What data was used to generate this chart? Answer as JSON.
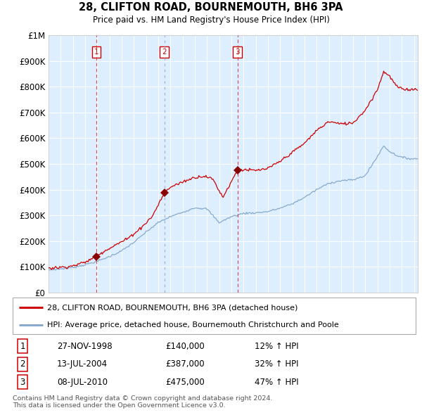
{
  "title": "28, CLIFTON ROAD, BOURNEMOUTH, BH6 3PA",
  "subtitle": "Price paid vs. HM Land Registry's House Price Index (HPI)",
  "legend_line1": "28, CLIFTON ROAD, BOURNEMOUTH, BH6 3PA (detached house)",
  "legend_line2": "HPI: Average price, detached house, Bournemouth Christchurch and Poole",
  "footer1": "Contains HM Land Registry data © Crown copyright and database right 2024.",
  "footer2": "This data is licensed under the Open Government Licence v3.0.",
  "transactions": [
    {
      "num": 1,
      "date": "27-NOV-1998",
      "price": 140000,
      "hpi_pct": "12% ↑ HPI"
    },
    {
      "num": 2,
      "date": "13-JUL-2004",
      "price": 387000,
      "hpi_pct": "32% ↑ HPI"
    },
    {
      "num": 3,
      "date": "08-JUL-2010",
      "price": 475000,
      "hpi_pct": "47% ↑ HPI"
    }
  ],
  "red_line_color": "#cc0000",
  "blue_line_color": "#88aacc",
  "plot_bg": "#ddeeff",
  "grid_color": "#ffffff",
  "marker_color": "#880000",
  "ylim": [
    0,
    1000000
  ],
  "yticks": [
    0,
    100000,
    200000,
    300000,
    400000,
    500000,
    600000,
    700000,
    800000,
    900000,
    1000000
  ],
  "ytick_labels": [
    "£0",
    "£100K",
    "£200K",
    "£300K",
    "£400K",
    "£500K",
    "£600K",
    "£700K",
    "£800K",
    "£900K",
    "£1M"
  ],
  "xstart_year": 1995,
  "xend_year": 2025,
  "sale1_year_f": 1998.917,
  "sale2_year_f": 2004.5,
  "sale3_year_f": 2010.5,
  "sale1_price": 140000,
  "sale2_price": 387000,
  "sale3_price": 475000,
  "hpi_anchors_y": [
    1995.0,
    1996.0,
    1997.0,
    1998.0,
    1999.0,
    2000.0,
    2001.0,
    2002.0,
    2003.0,
    2004.0,
    2005.0,
    2006.0,
    2007.0,
    2008.0,
    2009.0,
    2010.0,
    2011.0,
    2012.0,
    2013.0,
    2014.0,
    2015.0,
    2016.0,
    2017.0,
    2018.0,
    2019.0,
    2020.0,
    2021.0,
    2022.0,
    2022.5,
    2023.0,
    2023.5,
    2024.0,
    2024.8
  ],
  "hpi_anchors_v": [
    88000,
    92000,
    98000,
    108000,
    122000,
    140000,
    162000,
    195000,
    235000,
    272000,
    295000,
    312000,
    330000,
    325000,
    272000,
    295000,
    308000,
    310000,
    315000,
    328000,
    345000,
    370000,
    400000,
    425000,
    435000,
    438000,
    455000,
    530000,
    570000,
    548000,
    535000,
    525000,
    520000
  ],
  "red_anchors_y": [
    1995.0,
    1996.0,
    1997.0,
    1998.0,
    1998.917,
    1999.5,
    2000.5,
    2001.5,
    2002.5,
    2003.5,
    2004.5,
    2005.0,
    2006.0,
    2007.0,
    2007.8,
    2008.5,
    2009.3,
    2010.5,
    2011.0,
    2012.0,
    2013.0,
    2014.0,
    2015.0,
    2016.0,
    2017.0,
    2018.0,
    2019.0,
    2020.0,
    2021.0,
    2021.5,
    2022.0,
    2022.5,
    2023.0,
    2023.5,
    2024.0,
    2024.8
  ],
  "red_anchors_v": [
    95000,
    98000,
    104000,
    118000,
    140000,
    160000,
    185000,
    210000,
    248000,
    295000,
    387000,
    410000,
    430000,
    448000,
    453000,
    440000,
    370000,
    475000,
    478000,
    474000,
    482000,
    510000,
    545000,
    580000,
    630000,
    665000,
    655000,
    660000,
    710000,
    750000,
    790000,
    860000,
    840000,
    805000,
    790000,
    790000
  ]
}
